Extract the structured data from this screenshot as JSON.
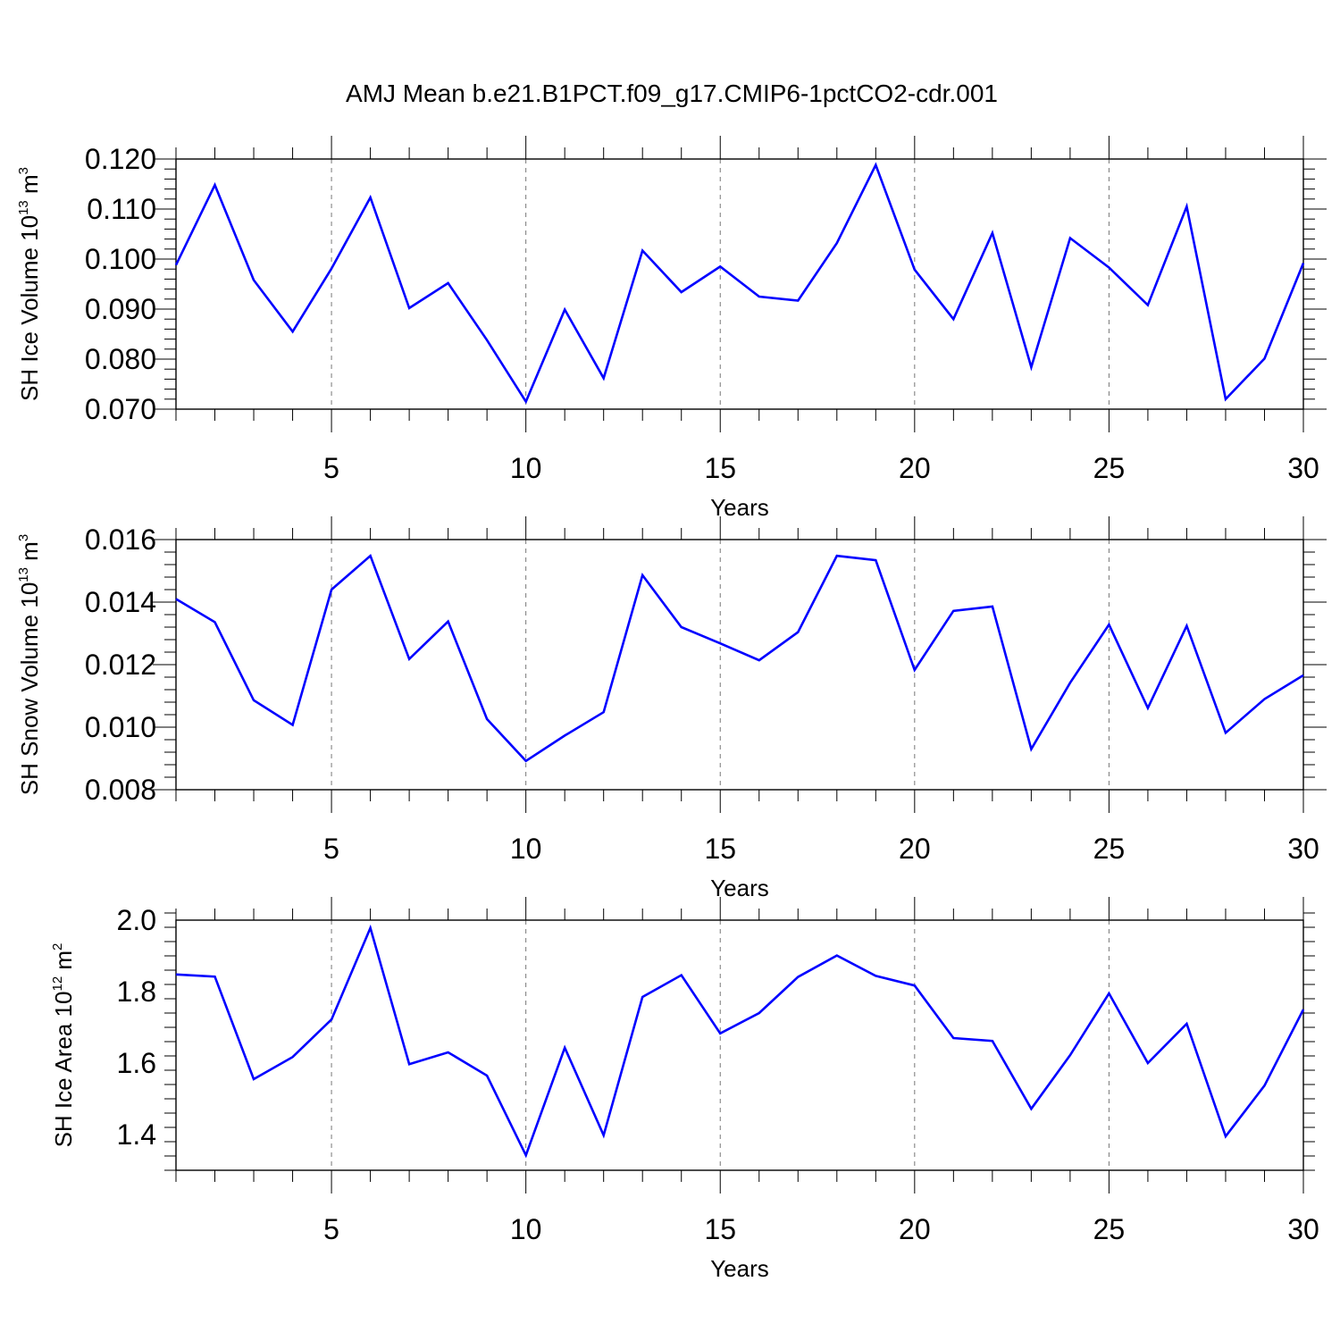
{
  "figure_title": "AMJ Mean b.e21.B1PCT.f09_g17.CMIP6-1pctCO2-cdr.001",
  "line_color": "#0000ff",
  "chart_data": [
    {
      "type": "line",
      "series_name": "SH Ice Volume",
      "ylabel": {
        "main": "SH Ice Volume 10",
        "exp": "13",
        "unit": " m",
        "unit_exp": "3"
      },
      "xlabel": "Years",
      "xlim": [
        1,
        30
      ],
      "ylim": [
        0.07,
        0.12
      ],
      "xticks": [
        5,
        10,
        15,
        20,
        25,
        30
      ],
      "yticks": [
        0.07,
        0.08,
        0.09,
        0.1,
        0.11,
        0.12
      ],
      "ytick_labels": [
        "0.070",
        "0.080",
        "0.090",
        "0.100",
        "0.110",
        "0.120"
      ],
      "yminor_step": 0.002,
      "x": [
        1,
        2,
        3,
        4,
        5,
        6,
        7,
        8,
        9,
        10,
        11,
        12,
        13,
        14,
        15,
        16,
        17,
        18,
        19,
        20,
        21,
        22,
        23,
        24,
        25,
        26,
        27,
        28,
        29,
        30
      ],
      "values": [
        0.0988,
        0.1148,
        0.0958,
        0.0855,
        0.0981,
        0.1123,
        0.0902,
        0.0952,
        0.0838,
        0.0715,
        0.0899,
        0.0762,
        0.1017,
        0.0934,
        0.0985,
        0.0925,
        0.0917,
        0.1032,
        0.1188,
        0.0979,
        0.088,
        0.1052,
        0.0784,
        0.1042,
        0.0983,
        0.0908,
        0.1105,
        0.072,
        0.0801,
        0.0992
      ]
    },
    {
      "type": "line",
      "series_name": "SH Snow Volume",
      "ylabel": {
        "main": "SH Snow Volume 10",
        "exp": "13",
        "unit": " m",
        "unit_exp": "3"
      },
      "xlabel": "Years",
      "xlim": [
        1,
        30
      ],
      "ylim": [
        0.008,
        0.016
      ],
      "xticks": [
        5,
        10,
        15,
        20,
        25,
        30
      ],
      "yticks": [
        0.008,
        0.01,
        0.012,
        0.014,
        0.016
      ],
      "ytick_labels": [
        "0.008",
        "0.010",
        "0.012",
        "0.014",
        "0.016"
      ],
      "yminor_step": 0.0004,
      "x": [
        1,
        2,
        3,
        4,
        5,
        6,
        7,
        8,
        9,
        10,
        11,
        12,
        13,
        14,
        15,
        16,
        17,
        18,
        19,
        20,
        21,
        22,
        23,
        24,
        25,
        26,
        27,
        28,
        29,
        30
      ],
      "values": [
        0.0141,
        0.01336,
        0.01086,
        0.01007,
        0.0144,
        0.01548,
        0.01218,
        0.01338,
        0.01026,
        0.00892,
        0.00973,
        0.01048,
        0.01486,
        0.0132,
        0.01268,
        0.01214,
        0.01304,
        0.01548,
        0.01534,
        0.01183,
        0.01372,
        0.01386,
        0.0093,
        0.01142,
        0.01328,
        0.01061,
        0.01324,
        0.00982,
        0.0109,
        0.01166
      ]
    },
    {
      "type": "line",
      "series_name": "SH Ice Area",
      "ylabel": {
        "main": "SH Ice Area 10",
        "exp": "12",
        "unit": " m",
        "unit_exp": "2"
      },
      "xlabel": "Years",
      "xlim": [
        1,
        30
      ],
      "ylim": [
        1.3,
        2.0
      ],
      "xticks": [
        5,
        10,
        15,
        20,
        25,
        30
      ],
      "yticks": [
        1.4,
        1.6,
        1.8,
        2.0
      ],
      "ytick_labels": [
        "1.4",
        "1.6",
        "1.8",
        "2.0"
      ],
      "yminor_step": 0.04,
      "x": [
        1,
        2,
        3,
        4,
        5,
        6,
        7,
        8,
        9,
        10,
        11,
        12,
        13,
        14,
        15,
        16,
        17,
        18,
        19,
        20,
        21,
        22,
        23,
        24,
        25,
        26,
        27,
        28,
        29,
        30
      ],
      "values": [
        1.848,
        1.842,
        1.555,
        1.617,
        1.722,
        1.978,
        1.597,
        1.63,
        1.565,
        1.342,
        1.643,
        1.398,
        1.785,
        1.846,
        1.683,
        1.74,
        1.841,
        1.901,
        1.844,
        1.817,
        1.67,
        1.662,
        1.472,
        1.622,
        1.795,
        1.6,
        1.71,
        1.395,
        1.537,
        1.75
      ]
    }
  ]
}
